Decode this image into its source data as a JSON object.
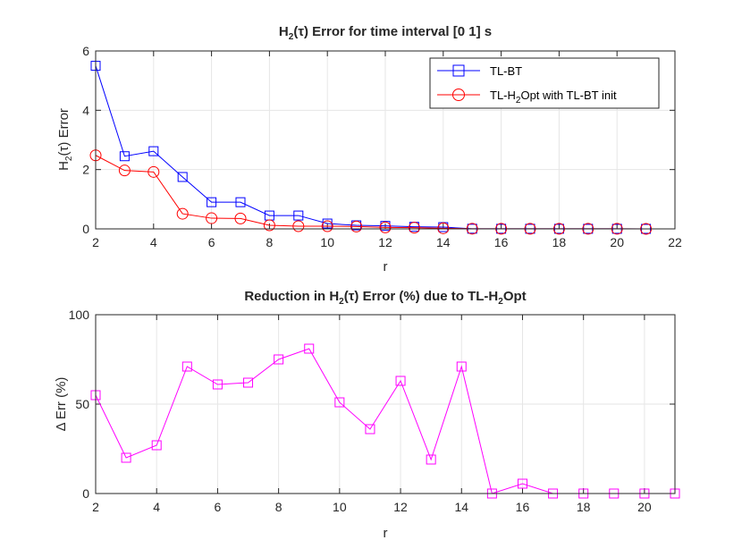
{
  "chart_data": [
    {
      "type": "line",
      "title": {
        "prefix": "H",
        "sub": "2",
        "rest": "(τ) Error for time interval [0 1] s"
      },
      "xlabel": "r",
      "ylabel": {
        "prefix": "H",
        "sub": "2",
        "rest": "(τ) Error"
      },
      "xlim": [
        2,
        22
      ],
      "ylim": [
        0,
        6
      ],
      "xticks": [
        2,
        4,
        6,
        8,
        10,
        12,
        14,
        16,
        18,
        20,
        22
      ],
      "yticks": [
        0,
        2,
        4,
        6
      ],
      "grid": true,
      "legend_position": "top-right",
      "x": [
        2,
        3,
        4,
        5,
        6,
        7,
        8,
        9,
        10,
        11,
        12,
        13,
        14,
        15,
        16,
        17,
        18,
        19,
        20,
        21
      ],
      "series": [
        {
          "name": "TL-BT",
          "legend": {
            "prefix": "TL-BT",
            "sub": "",
            "rest": ""
          },
          "color": "#0000ff",
          "marker": "square",
          "values": [
            5.5,
            2.45,
            2.62,
            1.75,
            0.9,
            0.9,
            0.45,
            0.45,
            0.18,
            0.12,
            0.1,
            0.07,
            0.06,
            0.005,
            0.004,
            0.003,
            0.003,
            0.002,
            0.002,
            0.001
          ]
        },
        {
          "name": "TL-H2Opt with TL-BT init",
          "legend": {
            "prefix": "TL-H",
            "sub": "2",
            "rest": "Opt with TL-BT init"
          },
          "color": "#ff0000",
          "marker": "circle",
          "values": [
            2.48,
            1.97,
            1.92,
            0.51,
            0.36,
            0.35,
            0.12,
            0.09,
            0.09,
            0.08,
            0.05,
            0.04,
            0.02,
            0.005,
            0.004,
            0.003,
            0.003,
            0.002,
            0.002,
            0.001
          ]
        }
      ]
    },
    {
      "type": "line",
      "title": {
        "prefix": "Reduction in H",
        "sub": "2",
        "mid": "(τ) Error (%) due to TL-H",
        "sub2": "2",
        "rest": "Opt"
      },
      "xlabel": "r",
      "ylabel": "Δ Err (%)",
      "xlim": [
        2,
        21
      ],
      "ylim": [
        0,
        100
      ],
      "xticks": [
        2,
        4,
        6,
        8,
        10,
        12,
        14,
        16,
        18,
        20
      ],
      "yticks": [
        0,
        50,
        100
      ],
      "grid": true,
      "x": [
        2,
        3,
        4,
        5,
        6,
        7,
        8,
        9,
        10,
        11,
        12,
        13,
        14,
        15,
        16,
        17,
        18,
        19,
        20,
        21
      ],
      "series": [
        {
          "name": "Δ Err",
          "color": "#ff00ff",
          "marker": "square",
          "values": [
            55,
            20,
            27,
            71,
            61,
            62,
            75,
            81,
            51,
            36,
            63,
            19,
            71,
            0,
            5.5,
            0,
            0,
            0,
            0,
            0
          ]
        }
      ]
    }
  ]
}
